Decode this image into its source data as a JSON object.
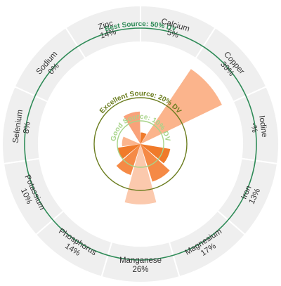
{
  "chart_data": {
    "type": "polar-bar",
    "title": "",
    "scale_max": 50,
    "reference_rings": [
      {
        "label": "Good Source: 10% DV",
        "value": 10,
        "color": "#a8d48a"
      },
      {
        "label": "Excellent Source: 20% DV",
        "value": 20,
        "color": "#6b7d1f"
      },
      {
        "label": "Best Source: 50% DV",
        "value": 50,
        "color": "#2e8b57"
      }
    ],
    "categories": [
      {
        "name": "Calcium",
        "display": "5%",
        "value": 5,
        "color": "#f07a2a"
      },
      {
        "name": "Copper",
        "display": "39%",
        "value": 39,
        "color": "#fbb48c"
      },
      {
        "name": "Iodine",
        "display": "-%",
        "value": 0,
        "color": "#fbb48c"
      },
      {
        "name": "Iron",
        "display": "13%",
        "value": 13,
        "color": "#f07a2a"
      },
      {
        "name": "Magnesium",
        "display": "17%",
        "value": 17,
        "color": "#f58a46"
      },
      {
        "name": "Manganese",
        "display": "26%",
        "value": 26,
        "color": "#fbc9ad"
      },
      {
        "name": "Phosphorus",
        "display": "14%",
        "value": 14,
        "color": "#f58a46"
      },
      {
        "name": "Potassium",
        "display": "10%",
        "value": 10,
        "color": "#f07a2a"
      },
      {
        "name": "Selenium",
        "display": "8%",
        "value": 8,
        "color": "#fbb48c"
      },
      {
        "name": "Sodium",
        "display": "0%",
        "value": 0,
        "color": "#fbb48c"
      },
      {
        "name": "Zinc",
        "display": "14%",
        "value": 14,
        "color": "#f9a27a"
      }
    ]
  }
}
